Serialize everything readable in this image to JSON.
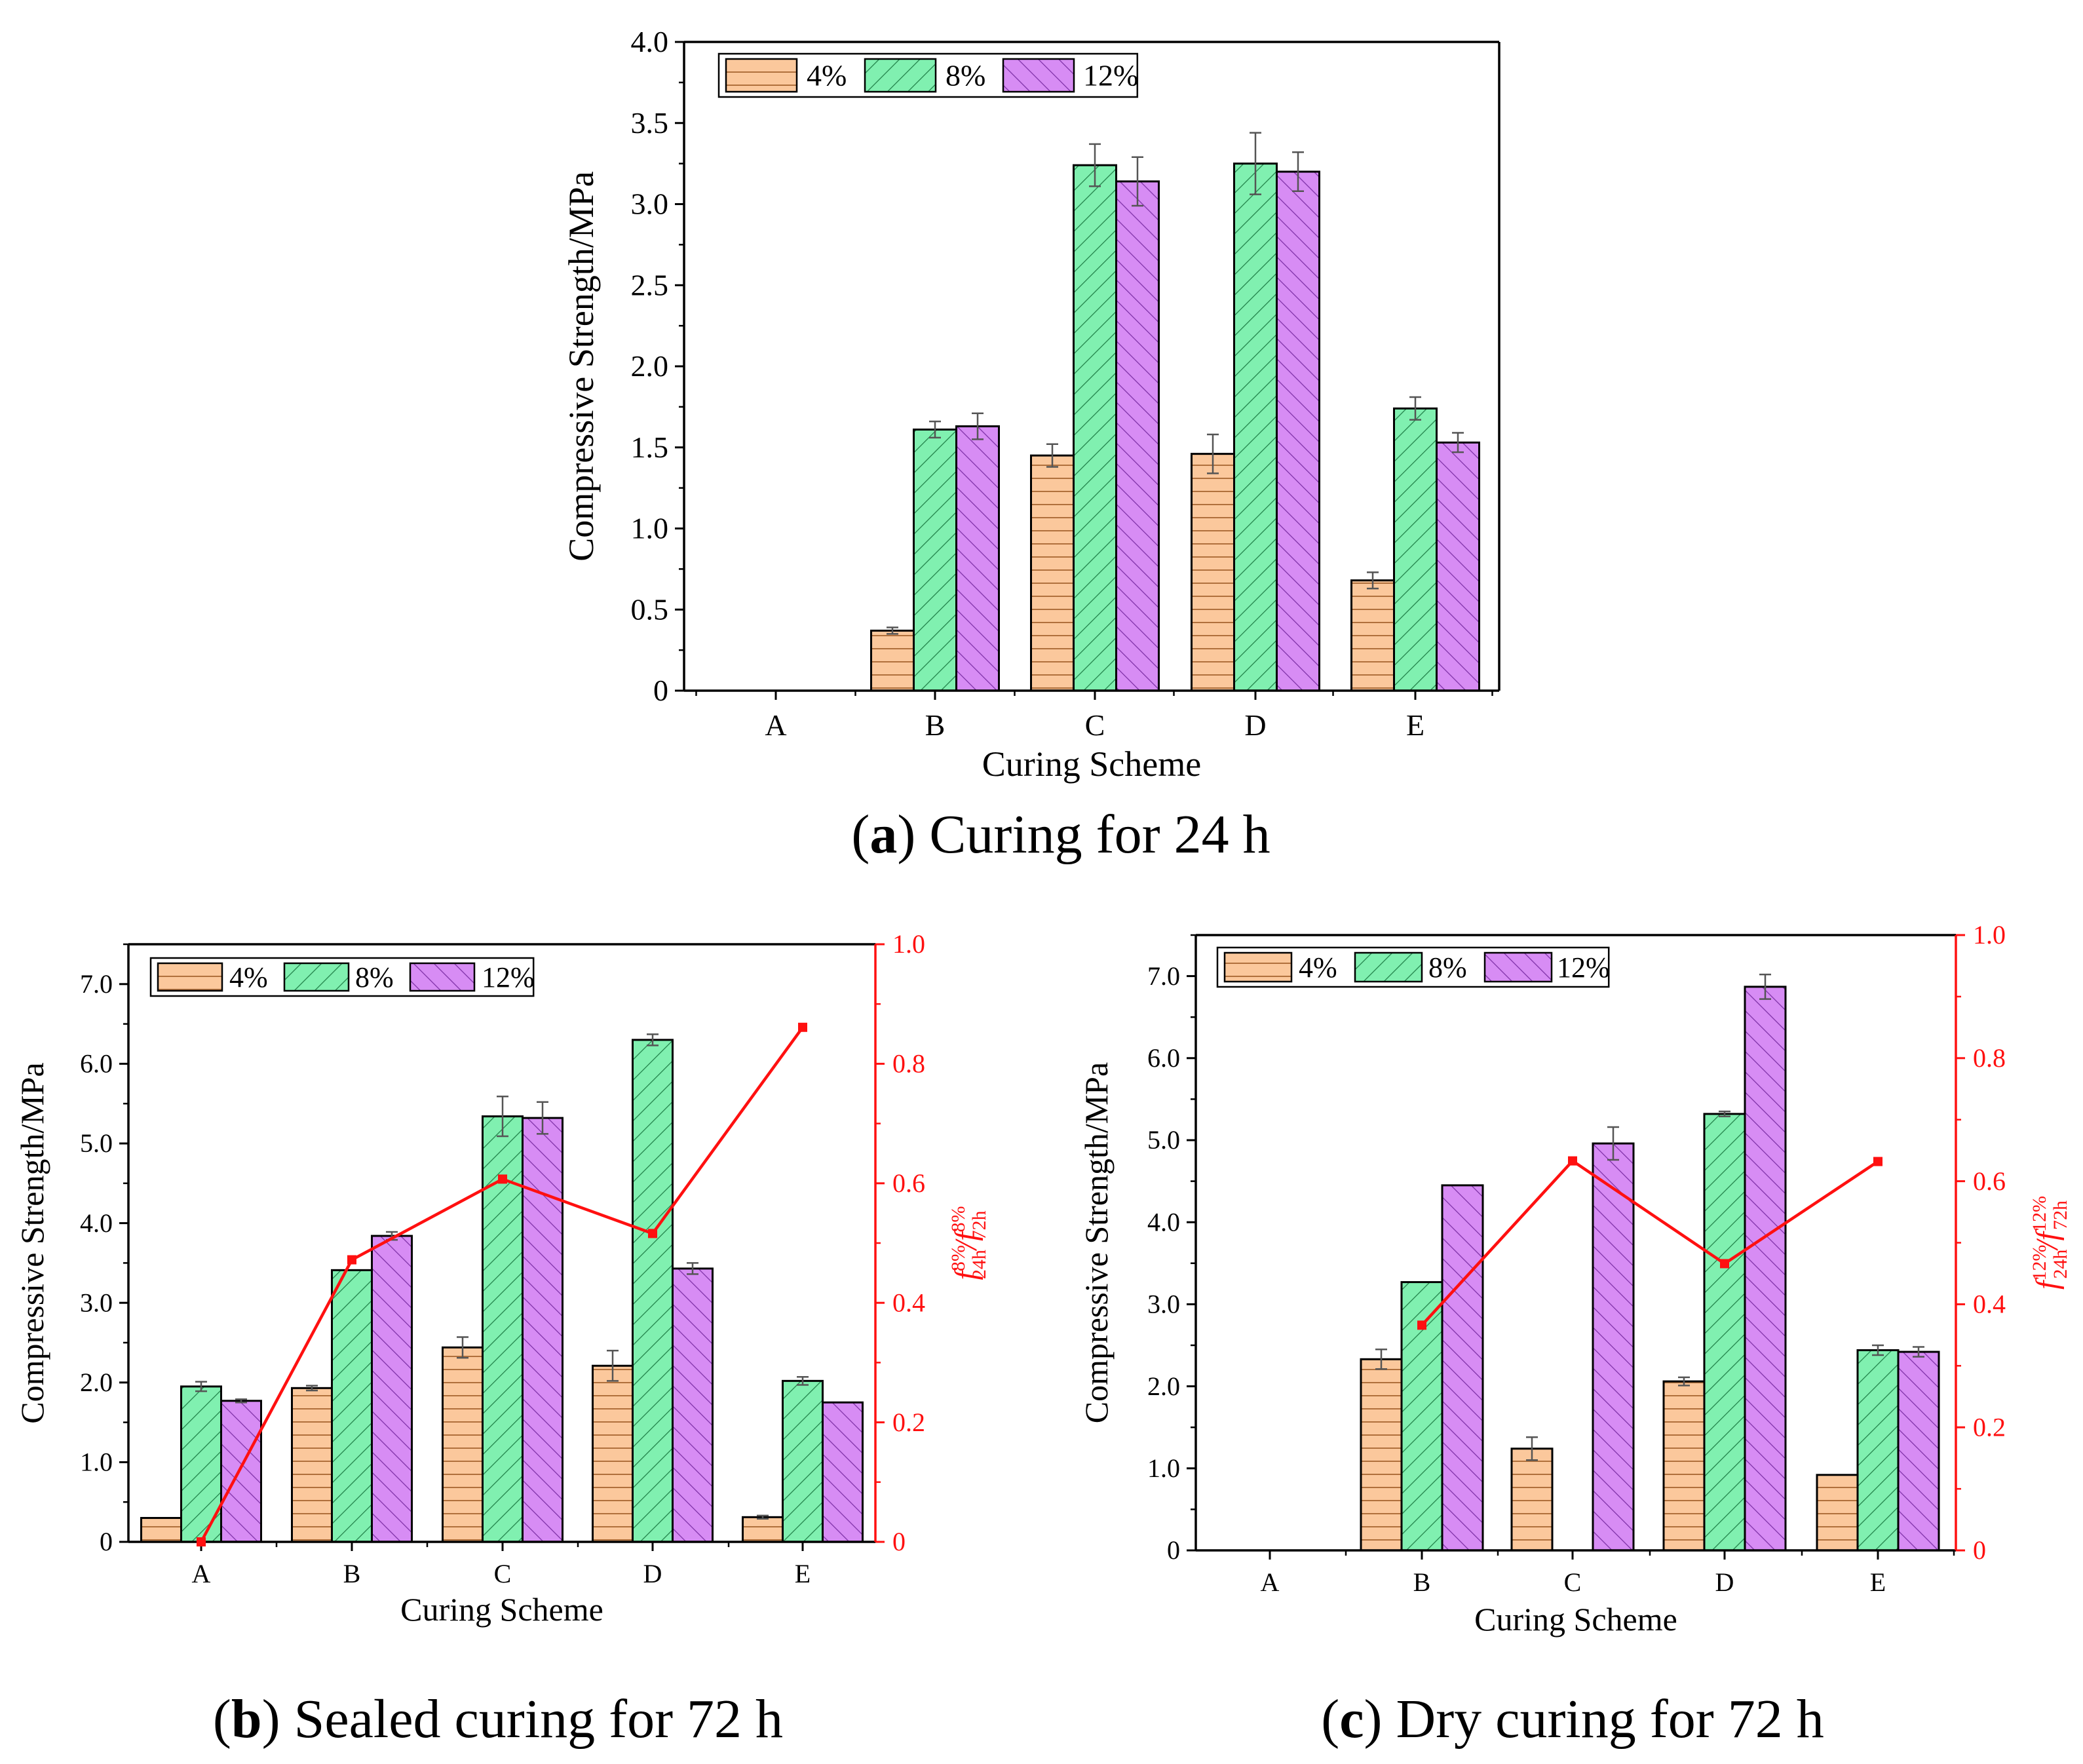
{
  "figure": {
    "colors": {
      "s4": {
        "fill": "#fbc89c",
        "hatch": "#b0703c"
      },
      "s8": {
        "fill": "#80f0b0",
        "hatch": "#208048"
      },
      "s12": {
        "fill": "#d78cf4",
        "hatch": "#7d30a6"
      },
      "ratio": "#ff1010"
    }
  },
  "chart_data": [
    {
      "type": "bar",
      "title": "Curing for 24 h",
      "caption_letter": "a",
      "xlabel": "Curing Scheme",
      "ylabel": "Compressive Strength/MPa",
      "ylim": [
        0,
        4.0
      ],
      "yticks": [
        "0",
        "0.5",
        "1.0",
        "1.5",
        "2.0",
        "2.5",
        "3.0",
        "3.5",
        "4.0"
      ],
      "categories": [
        "A",
        "B",
        "C",
        "D",
        "E"
      ],
      "legend": [
        "4%",
        "8%",
        "12%"
      ],
      "series": [
        {
          "name": "4%",
          "values": [
            0,
            0.37,
            1.45,
            1.46,
            0.68
          ],
          "errors": [
            0,
            0.02,
            0.07,
            0.12,
            0.05
          ]
        },
        {
          "name": "8%",
          "values": [
            0,
            1.61,
            3.24,
            3.25,
            1.74
          ],
          "errors": [
            0,
            0.05,
            0.13,
            0.19,
            0.07
          ]
        },
        {
          "name": "12%",
          "values": [
            0,
            1.63,
            3.14,
            3.2,
            1.53
          ],
          "errors": [
            0,
            0.08,
            0.15,
            0.12,
            0.06
          ]
        }
      ]
    },
    {
      "type": "bar",
      "title": "Sealed curing for 72 h",
      "caption_letter": "b",
      "xlabel": "Curing Scheme",
      "ylabel": "Compressive Strength/MPa",
      "ylim": [
        0,
        7.5
      ],
      "yticks": [
        "0",
        "1.0",
        "2.0",
        "3.0",
        "4.0",
        "5.0",
        "6.0",
        "7.0"
      ],
      "y2label": {
        "pre": "f",
        "a_sup": "8%",
        "a_sub": "24h",
        "mid": "/f",
        "b_sup": "8%",
        "b_sub": "72h"
      },
      "y2lim": [
        0,
        1.0
      ],
      "y2ticks": [
        "0",
        "0.2",
        "0.4",
        "0.6",
        "0.8",
        "1.0"
      ],
      "categories": [
        "A",
        "B",
        "C",
        "D",
        "E"
      ],
      "legend": [
        "4%",
        "8%",
        "12%"
      ],
      "series": [
        {
          "name": "4%",
          "values": [
            0.3,
            1.93,
            2.44,
            2.21,
            0.31
          ],
          "errors": [
            0,
            0.03,
            0.13,
            0.19,
            0.02
          ]
        },
        {
          "name": "8%",
          "values": [
            1.95,
            3.41,
            5.34,
            6.3,
            2.02
          ],
          "errors": [
            0.06,
            0,
            0.25,
            0.07,
            0.05
          ]
        },
        {
          "name": "12%",
          "values": [
            1.77,
            3.84,
            5.32,
            3.43,
            1.75
          ],
          "errors": [
            0.02,
            0.05,
            0.2,
            0.07,
            0
          ]
        }
      ],
      "ratio": {
        "name": "f8% 24h / f8% 72h",
        "values": [
          0,
          0.472,
          0.607,
          0.516,
          0.861
        ]
      }
    },
    {
      "type": "bar",
      "title": "Dry curing for 72 h",
      "caption_letter": "c",
      "xlabel": "Curing Scheme",
      "ylabel": "Compressive Strength/MPa",
      "ylim": [
        0,
        7.5
      ],
      "yticks": [
        "0",
        "1.0",
        "2.0",
        "3.0",
        "4.0",
        "5.0",
        "6.0",
        "7.0"
      ],
      "y2label": {
        "pre": "f",
        "a_sup": "12%",
        "a_sub": "24h",
        "mid": "/f",
        "b_sup": "12%",
        "b_sub": "72h"
      },
      "y2lim": [
        0,
        1.0
      ],
      "y2ticks": [
        "0",
        "0.2",
        "0.4",
        "0.6",
        "0.8",
        "1.0"
      ],
      "categories": [
        "A",
        "B",
        "C",
        "D",
        "E"
      ],
      "legend": [
        "4%",
        "8%",
        "12%"
      ],
      "series": [
        {
          "name": "4%",
          "values": [
            0,
            2.33,
            1.24,
            2.06,
            0.92
          ],
          "errors": [
            0,
            0.12,
            0.14,
            0.05,
            0
          ]
        },
        {
          "name": "8%",
          "values": [
            0,
            3.27,
            0,
            5.32,
            2.44
          ],
          "errors": [
            0,
            0,
            0,
            0.03,
            0.06
          ]
        },
        {
          "name": "12%",
          "values": [
            0,
            4.45,
            4.96,
            6.87,
            2.42
          ],
          "errors": [
            0,
            0,
            0.2,
            0.15,
            0.06
          ]
        }
      ],
      "ratio": {
        "name": "f12% 24h / f12% 72h",
        "values": [
          null,
          0.366,
          0.633,
          0.466,
          0.632
        ]
      }
    }
  ]
}
